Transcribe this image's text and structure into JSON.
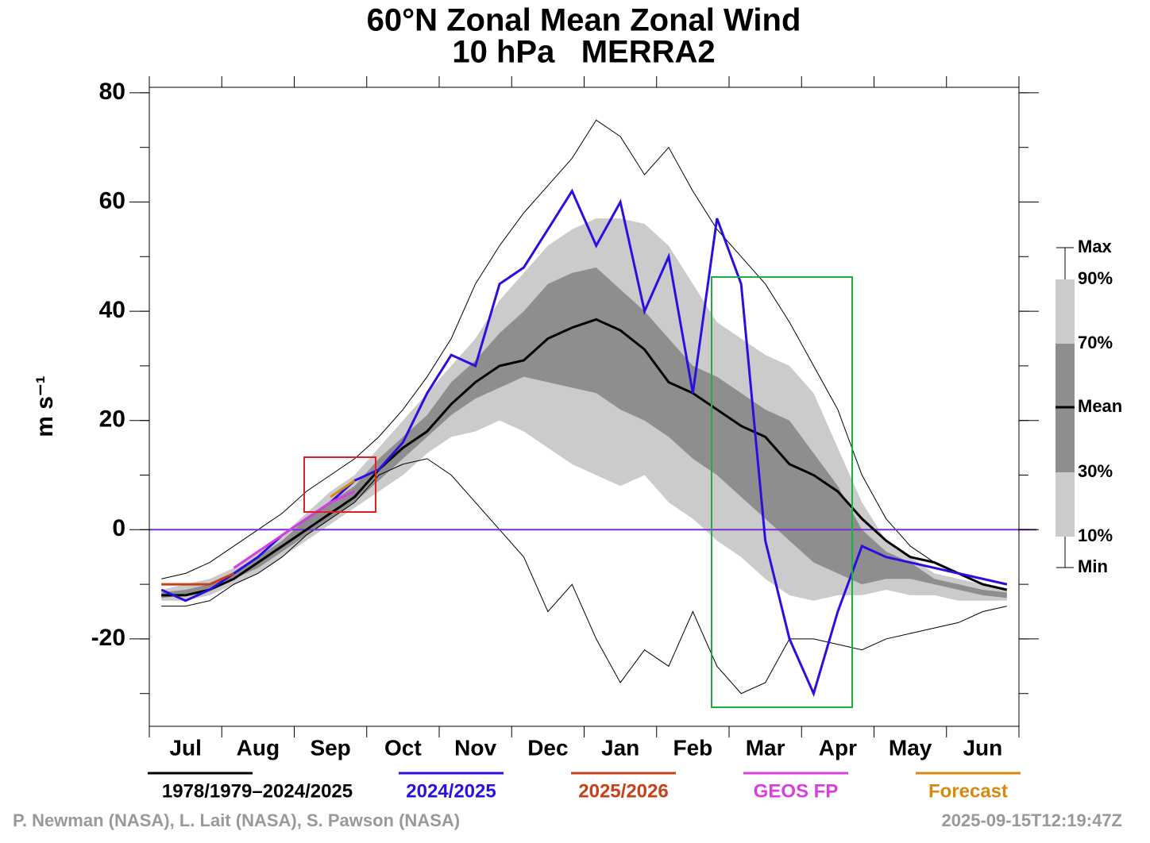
{
  "chart_data": {
    "type": "line",
    "title": "60°N Zonal Mean Zonal Wind",
    "subtitle": "10 hPa   MERRA2",
    "ylabel": "m s⁻¹",
    "categories": [
      null,
      "Jul",
      null,
      null,
      "Aug",
      null,
      null,
      "Sep",
      null,
      null,
      "Oct",
      null,
      null,
      "Nov",
      null,
      null,
      "Dec",
      null,
      null,
      "Jan",
      null,
      null,
      "Feb",
      null,
      null,
      "Mar",
      null,
      null,
      "Apr",
      null,
      null,
      "May",
      null,
      null,
      "Jun",
      null
    ],
    "ylim": [
      -36,
      81
    ],
    "yticks": [
      -20,
      0,
      20,
      40,
      60,
      80
    ],
    "zero_line_color": "#7b2fd6",
    "percentiles": {
      "max": [
        -9,
        -8,
        -6,
        -3,
        0,
        3,
        7,
        10,
        13,
        17,
        22,
        28,
        35,
        45,
        52,
        58,
        63,
        68,
        75,
        72,
        65,
        70,
        62,
        55,
        50,
        45,
        38,
        30,
        22,
        10,
        2,
        -3,
        -6,
        -8,
        -9,
        -10
      ],
      "p90": [
        -11,
        -10,
        -9,
        -7,
        -4,
        -1,
        3,
        7,
        10,
        15,
        20,
        25,
        30,
        35,
        42,
        47,
        52,
        55,
        57,
        57,
        56,
        52,
        45,
        38,
        35,
        32,
        30,
        25,
        15,
        5,
        -2,
        -5,
        -8,
        -9,
        -10,
        -11
      ],
      "p70": [
        -11.5,
        -11,
        -10,
        -8,
        -5,
        -2,
        2,
        5,
        8,
        13,
        17,
        21,
        27,
        31,
        36,
        40,
        45,
        47,
        48,
        44,
        40,
        35,
        30,
        28,
        25,
        22,
        20,
        14,
        8,
        0,
        -4,
        -6,
        -9,
        -10,
        -11,
        -11.5
      ],
      "p30": [
        -12.5,
        -12,
        -11,
        -9,
        -7,
        -4,
        -1,
        2,
        5,
        9,
        13,
        17,
        21,
        24,
        26,
        28,
        27,
        26,
        25,
        22,
        20,
        17,
        13,
        10,
        6,
        2,
        -2,
        -6,
        -8,
        -10,
        -9,
        -9,
        -10,
        -11,
        -12,
        -12.5
      ],
      "p10": [
        -13,
        -13,
        -12,
        -10,
        -8,
        -5,
        -2,
        1,
        4,
        7,
        10,
        14,
        17,
        18,
        20,
        18,
        15,
        12,
        10,
        8,
        10,
        5,
        2,
        -2,
        -5,
        -9,
        -12,
        -13,
        -12,
        -12,
        -11,
        -12,
        -12,
        -13,
        -13,
        -13
      ],
      "min": [
        -14,
        -14,
        -13,
        -10,
        -8,
        -5,
        -1,
        2,
        5,
        10,
        12,
        13,
        10,
        5,
        0,
        -5,
        -15,
        -10,
        -20,
        -28,
        -22,
        -25,
        -15,
        -25,
        -30,
        -28,
        -20,
        -20,
        -21,
        -22,
        -20,
        -19,
        -18,
        -17,
        -15,
        -14
      ]
    },
    "band_colors": [
      "#cbcbcb",
      "#8e8e8e"
    ],
    "band_legend": [
      "Max",
      "90%",
      "70%",
      "Mean",
      "30%",
      "10%",
      "Min"
    ],
    "series": [
      {
        "name": "1978/1979–2024/2025",
        "color": "#000000",
        "values": [
          -12,
          -12,
          -11,
          -9,
          -6,
          -3,
          0,
          3,
          6,
          11,
          15,
          18,
          23,
          27,
          30,
          31,
          35,
          37,
          38.5,
          36.5,
          33,
          27,
          25,
          22,
          19,
          17,
          12,
          10,
          7,
          2,
          -2,
          -5,
          -6,
          -8,
          -10,
          -11
        ]
      },
      {
        "name": "2024/2025",
        "color": "#2a10e0",
        "values": [
          -11,
          -13,
          -11,
          -8,
          -5,
          -1,
          2,
          5,
          9,
          11,
          16,
          25,
          32,
          30,
          45,
          48,
          55,
          62,
          52,
          60,
          40,
          50,
          25,
          57,
          45,
          -2,
          -20,
          -30,
          -15,
          -3,
          -5,
          -6,
          -7,
          -8,
          -9,
          -10
        ]
      },
      {
        "name": "2025/2026",
        "color": "#c8401a",
        "values": [
          -10,
          -10,
          -10,
          -8,
          null,
          null,
          null,
          null,
          null,
          null,
          null,
          null,
          null,
          null,
          null,
          null,
          null,
          null,
          null,
          null,
          null,
          null,
          null,
          null,
          null,
          null,
          null,
          null,
          null,
          null,
          null,
          null,
          null,
          null,
          null,
          null
        ]
      },
      {
        "name": "GEOS FP",
        "color": "#d83ee0",
        "values": [
          null,
          null,
          null,
          -7,
          -4,
          -1,
          2,
          5,
          7,
          null,
          null,
          null,
          null,
          null,
          null,
          null,
          null,
          null,
          null,
          null,
          null,
          null,
          null,
          null,
          null,
          null,
          null,
          null,
          null,
          null,
          null,
          null,
          null,
          null,
          null,
          null
        ]
      },
      {
        "name": "Forecast",
        "color": "#d88a10",
        "values": [
          null,
          null,
          null,
          null,
          null,
          null,
          null,
          6,
          9,
          null,
          null,
          null,
          null,
          null,
          null,
          null,
          null,
          null,
          null,
          null,
          null,
          null,
          null,
          null,
          null,
          null,
          null,
          null,
          null,
          null,
          null,
          null,
          null,
          null,
          null,
          null
        ]
      }
    ],
    "credits": "P. Newman (NASA), L. Lait (NASA), S. Pawson (NASA)",
    "timestamp": "2025-09-15T12:19:47Z"
  }
}
